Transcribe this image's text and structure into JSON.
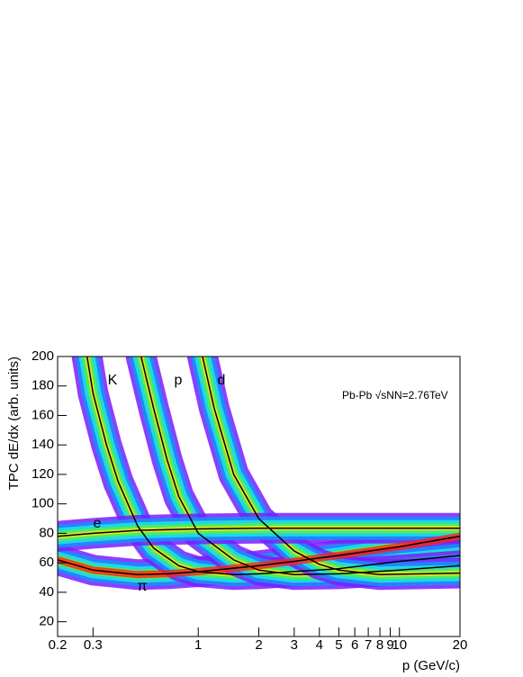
{
  "chart_data": {
    "type": "line",
    "x_label": "p (GeV/c)",
    "y_label": "TPC dE/dx (arb. units)",
    "log_x": true,
    "xlim": [
      0.2,
      20
    ],
    "ylim": [
      10,
      200
    ],
    "xticks": [
      0.2,
      0.3,
      1,
      2,
      3,
      4,
      5,
      6,
      7,
      8,
      9,
      10,
      20
    ],
    "yticks": [
      20,
      40,
      60,
      80,
      100,
      120,
      140,
      160,
      180,
      200
    ],
    "annotation": "Pb-Pb √sNN=2.76TeV",
    "series": [
      {
        "name": "π",
        "color": "#000000",
        "x": [
          0.2,
          0.3,
          0.5,
          0.7,
          1,
          2,
          3,
          5,
          10,
          20
        ],
        "values": [
          62,
          55,
          52,
          52.5,
          54,
          58,
          61,
          65,
          71,
          78
        ]
      },
      {
        "name": "K",
        "color": "#000000",
        "x": [
          0.28,
          0.3,
          0.35,
          0.4,
          0.5,
          0.6,
          0.8,
          1,
          1.5,
          2,
          5,
          10,
          20
        ],
        "values": [
          200,
          175,
          140,
          115,
          85,
          70,
          58,
          54,
          52,
          52.5,
          56,
          61,
          65
        ]
      },
      {
        "name": "p",
        "color": "#000000",
        "x": [
          0.52,
          0.6,
          0.7,
          0.8,
          1,
          1.5,
          2,
          3,
          5,
          10,
          20
        ],
        "values": [
          200,
          165,
          130,
          105,
          80,
          62,
          55,
          52,
          52.5,
          55,
          58
        ]
      },
      {
        "name": "d",
        "color": "#000000",
        "x": [
          1.05,
          1.2,
          1.5,
          2,
          3,
          4,
          5,
          8,
          20
        ],
        "values": [
          200,
          165,
          120,
          90,
          68,
          59,
          55,
          52,
          53
        ]
      },
      {
        "name": "e",
        "color": "#000000",
        "x": [
          0.2,
          0.3,
          0.5,
          1,
          2,
          5,
          20
        ],
        "values": [
          78,
          80,
          82,
          83,
          83.5,
          83.5,
          83.5
        ]
      }
    ]
  }
}
